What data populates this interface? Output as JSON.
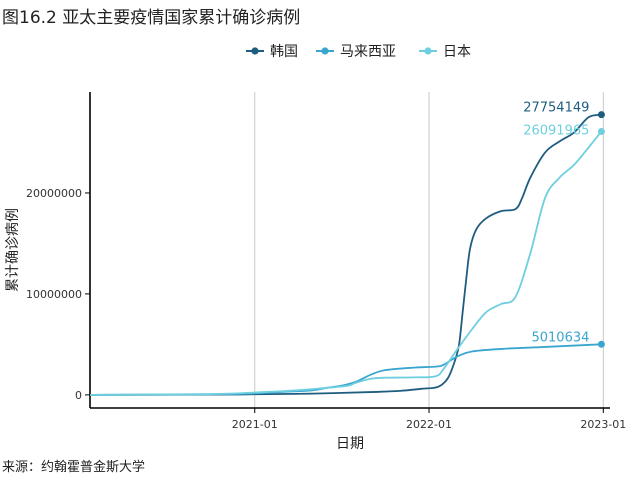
{
  "title": "图16.2 亚太主要疫情国家累计确诊病例",
  "source": "来源：约翰霍普金斯大学",
  "chart_data": {
    "type": "line",
    "title": "图16.2 亚太主要疫情国家累计确诊病例",
    "xlabel": "日期",
    "ylabel": "累计确诊病例",
    "x_ticks": [
      "2021-01",
      "2022-01",
      "2023-01"
    ],
    "y_ticks": [
      0,
      10000000,
      20000000
    ],
    "xlim": [
      "2020-01-22",
      "2023-01-15"
    ],
    "ylim": [
      -1300000,
      30000000
    ],
    "grid": "vertical",
    "legend_position": "top",
    "series": [
      {
        "name": "韩国",
        "color": "#1f5d80",
        "end_label": "27754149",
        "points": [
          [
            "2020-01-22",
            0
          ],
          [
            "2020-10-01",
            24000
          ],
          [
            "2021-01-01",
            62000
          ],
          [
            "2021-05-01",
            125000
          ],
          [
            "2021-09-01",
            280000
          ],
          [
            "2021-11-01",
            400000
          ],
          [
            "2021-12-15",
            600000
          ],
          [
            "2022-01-20",
            800000
          ],
          [
            "2022-02-10",
            1700000
          ],
          [
            "2022-02-25",
            3500000
          ],
          [
            "2022-03-05",
            5000000
          ],
          [
            "2022-03-12",
            8000000
          ],
          [
            "2022-03-20",
            11500000
          ],
          [
            "2022-03-28",
            14500000
          ],
          [
            "2022-04-10",
            16400000
          ],
          [
            "2022-05-01",
            17500000
          ],
          [
            "2022-06-01",
            18200000
          ],
          [
            "2022-07-01",
            18400000
          ],
          [
            "2022-07-15",
            19500000
          ],
          [
            "2022-08-01",
            21500000
          ],
          [
            "2022-09-01",
            24000000
          ],
          [
            "2022-10-01",
            25100000
          ],
          [
            "2022-11-01",
            26000000
          ],
          [
            "2022-12-01",
            27500000
          ],
          [
            "2022-12-28",
            27754149
          ]
        ]
      },
      {
        "name": "马来西亚",
        "color": "#3aa6d0",
        "end_label": "5010634",
        "points": [
          [
            "2020-01-22",
            0
          ],
          [
            "2020-10-01",
            50000
          ],
          [
            "2021-01-01",
            150000
          ],
          [
            "2021-03-01",
            300000
          ],
          [
            "2021-05-01",
            450000
          ],
          [
            "2021-06-01",
            700000
          ],
          [
            "2021-07-01",
            900000
          ],
          [
            "2021-08-01",
            1300000
          ],
          [
            "2021-09-01",
            2000000
          ],
          [
            "2021-10-01",
            2450000
          ],
          [
            "2021-12-01",
            2700000
          ],
          [
            "2022-01-15",
            2800000
          ],
          [
            "2022-02-01",
            3000000
          ],
          [
            "2022-03-01",
            3800000
          ],
          [
            "2022-04-01",
            4300000
          ],
          [
            "2022-06-01",
            4550000
          ],
          [
            "2022-09-01",
            4750000
          ],
          [
            "2022-12-28",
            5010634
          ]
        ]
      },
      {
        "name": "日本",
        "color": "#6dcfdf",
        "end_label": "26091965",
        "points": [
          [
            "2020-01-22",
            0
          ],
          [
            "2020-10-01",
            80000
          ],
          [
            "2021-01-01",
            230000
          ],
          [
            "2021-04-01",
            450000
          ],
          [
            "2021-06-01",
            700000
          ],
          [
            "2021-07-15",
            900000
          ],
          [
            "2021-08-01",
            1200000
          ],
          [
            "2021-09-01",
            1600000
          ],
          [
            "2021-10-01",
            1700000
          ],
          [
            "2021-12-01",
            1730000
          ],
          [
            "2022-01-15",
            1850000
          ],
          [
            "2022-02-01",
            2600000
          ],
          [
            "2022-03-01",
            4500000
          ],
          [
            "2022-04-01",
            6500000
          ],
          [
            "2022-05-01",
            8200000
          ],
          [
            "2022-06-01",
            9000000
          ],
          [
            "2022-07-01",
            9700000
          ],
          [
            "2022-08-01",
            14000000
          ],
          [
            "2022-09-01",
            19500000
          ],
          [
            "2022-10-01",
            21500000
          ],
          [
            "2022-11-01",
            22800000
          ],
          [
            "2022-12-01",
            24500000
          ],
          [
            "2022-12-28",
            26091965
          ]
        ]
      }
    ]
  }
}
